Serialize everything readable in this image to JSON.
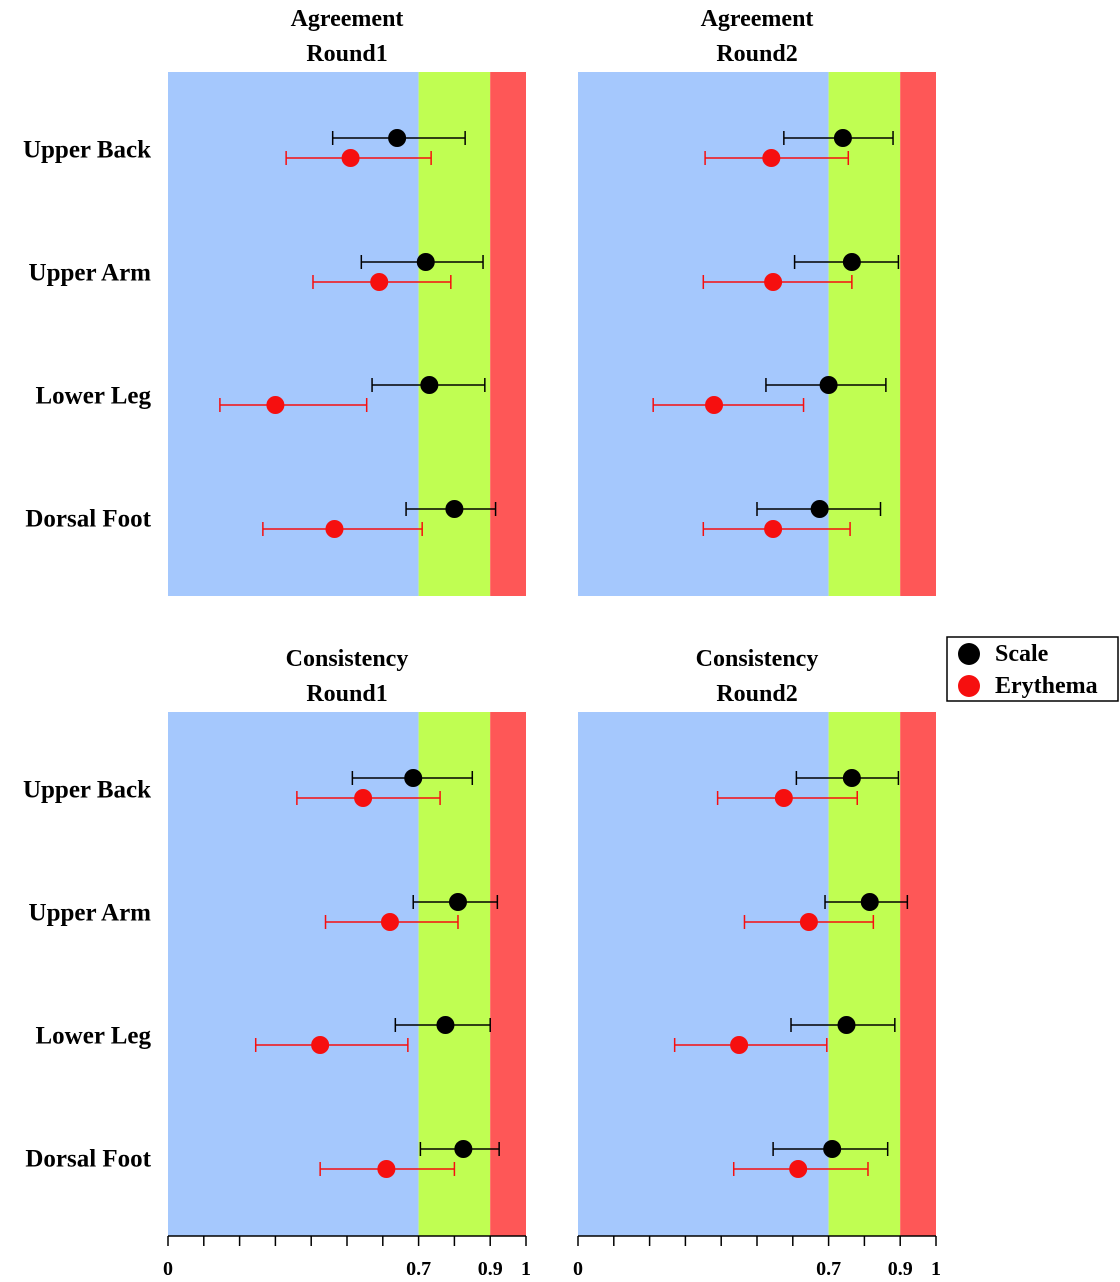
{
  "colors": {
    "zone_low": "#a5c8fd",
    "zone_mid": "#c0fe52",
    "zone_high": "#fe5757",
    "scale": "#000000",
    "erythema": "#f60f0f"
  },
  "legend": {
    "entries": [
      {
        "name": "Scale",
        "color": "#000000"
      },
      {
        "name": "Erythema",
        "color": "#f60f0f"
      }
    ]
  },
  "chart_data": [
    {
      "type": "scatter",
      "title_lines": [
        "Agreement",
        "Round1"
      ],
      "categories": [
        "Upper Back",
        "Upper Arm",
        "Lower Leg",
        "Dorsal Foot"
      ],
      "xlim": [
        0,
        1
      ],
      "bands": [
        {
          "from": 0,
          "to": 0.7,
          "color": "#a5c8fd"
        },
        {
          "from": 0.7,
          "to": 0.9,
          "color": "#c0fe52"
        },
        {
          "from": 0.9,
          "to": 1,
          "color": "#fe5757"
        }
      ],
      "series": [
        {
          "name": "Scale",
          "color": "#000000",
          "points": [
            {
              "value": 0.64,
              "low": 0.46,
              "high": 0.83
            },
            {
              "value": 0.72,
              "low": 0.54,
              "high": 0.88
            },
            {
              "value": 0.73,
              "low": 0.57,
              "high": 0.885
            },
            {
              "value": 0.8,
              "low": 0.665,
              "high": 0.915
            }
          ]
        },
        {
          "name": "Erythema",
          "color": "#f60f0f",
          "points": [
            {
              "value": 0.51,
              "low": 0.33,
              "high": 0.735
            },
            {
              "value": 0.59,
              "low": 0.405,
              "high": 0.79
            },
            {
              "value": 0.3,
              "low": 0.145,
              "high": 0.555
            },
            {
              "value": 0.465,
              "low": 0.265,
              "high": 0.71
            }
          ]
        }
      ]
    },
    {
      "type": "scatter",
      "title_lines": [
        "Agreement",
        "Round2"
      ],
      "categories": [],
      "xlim": [
        0,
        1
      ],
      "bands": [
        {
          "from": 0,
          "to": 0.7,
          "color": "#a5c8fd"
        },
        {
          "from": 0.7,
          "to": 0.9,
          "color": "#c0fe52"
        },
        {
          "from": 0.9,
          "to": 1,
          "color": "#fe5757"
        }
      ],
      "series": [
        {
          "name": "Scale",
          "color": "#000000",
          "points": [
            {
              "value": 0.74,
              "low": 0.575,
              "high": 0.88
            },
            {
              "value": 0.765,
              "low": 0.605,
              "high": 0.895
            },
            {
              "value": 0.7,
              "low": 0.525,
              "high": 0.86
            },
            {
              "value": 0.675,
              "low": 0.5,
              "high": 0.845
            }
          ]
        },
        {
          "name": "Erythema",
          "color": "#f60f0f",
          "points": [
            {
              "value": 0.54,
              "low": 0.355,
              "high": 0.755
            },
            {
              "value": 0.545,
              "low": 0.35,
              "high": 0.765
            },
            {
              "value": 0.38,
              "low": 0.21,
              "high": 0.63
            },
            {
              "value": 0.545,
              "low": 0.35,
              "high": 0.76
            }
          ]
        }
      ]
    },
    {
      "type": "scatter",
      "title_lines": [
        "Consistency",
        "Round1"
      ],
      "categories": [
        "Upper Back",
        "Upper Arm",
        "Lower Leg",
        "Dorsal Foot"
      ],
      "xlim": [
        0,
        1
      ],
      "bands": [
        {
          "from": 0,
          "to": 0.7,
          "color": "#a5c8fd"
        },
        {
          "from": 0.7,
          "to": 0.9,
          "color": "#c0fe52"
        },
        {
          "from": 0.9,
          "to": 1,
          "color": "#fe5757"
        }
      ],
      "series": [
        {
          "name": "Scale",
          "color": "#000000",
          "points": [
            {
              "value": 0.685,
              "low": 0.515,
              "high": 0.85
            },
            {
              "value": 0.81,
              "low": 0.685,
              "high": 0.92
            },
            {
              "value": 0.775,
              "low": 0.635,
              "high": 0.9
            },
            {
              "value": 0.825,
              "low": 0.705,
              "high": 0.925
            }
          ]
        },
        {
          "name": "Erythema",
          "color": "#f60f0f",
          "points": [
            {
              "value": 0.545,
              "low": 0.36,
              "high": 0.76
            },
            {
              "value": 0.62,
              "low": 0.44,
              "high": 0.81
            },
            {
              "value": 0.425,
              "low": 0.245,
              "high": 0.67
            },
            {
              "value": 0.61,
              "low": 0.425,
              "high": 0.8
            }
          ]
        }
      ]
    },
    {
      "type": "scatter",
      "title_lines": [
        "Consistency",
        "Round2"
      ],
      "categories": [],
      "xlim": [
        0,
        1
      ],
      "bands": [
        {
          "from": 0,
          "to": 0.7,
          "color": "#a5c8fd"
        },
        {
          "from": 0.7,
          "to": 0.9,
          "color": "#c0fe52"
        },
        {
          "from": 0.9,
          "to": 1,
          "color": "#fe5757"
        }
      ],
      "series": [
        {
          "name": "Scale",
          "color": "#000000",
          "points": [
            {
              "value": 0.765,
              "low": 0.61,
              "high": 0.895
            },
            {
              "value": 0.815,
              "low": 0.69,
              "high": 0.92
            },
            {
              "value": 0.75,
              "low": 0.595,
              "high": 0.885
            },
            {
              "value": 0.71,
              "low": 0.545,
              "high": 0.865
            }
          ]
        },
        {
          "name": "Erythema",
          "color": "#f60f0f",
          "points": [
            {
              "value": 0.575,
              "low": 0.39,
              "high": 0.78
            },
            {
              "value": 0.645,
              "low": 0.465,
              "high": 0.825
            },
            {
              "value": 0.45,
              "low": 0.27,
              "high": 0.695
            },
            {
              "value": 0.615,
              "low": 0.435,
              "high": 0.81
            }
          ]
        }
      ]
    }
  ],
  "x_axis": {
    "tick_values": [
      0,
      0.1,
      0.2,
      0.3,
      0.4,
      0.5,
      0.6,
      0.7,
      0.8,
      0.9,
      1
    ],
    "labels": [
      {
        "value": 0,
        "text": "0"
      },
      {
        "value": 0.7,
        "text": "0.7"
      },
      {
        "value": 0.9,
        "text": "0.9"
      },
      {
        "value": 1,
        "text": "1"
      }
    ]
  }
}
